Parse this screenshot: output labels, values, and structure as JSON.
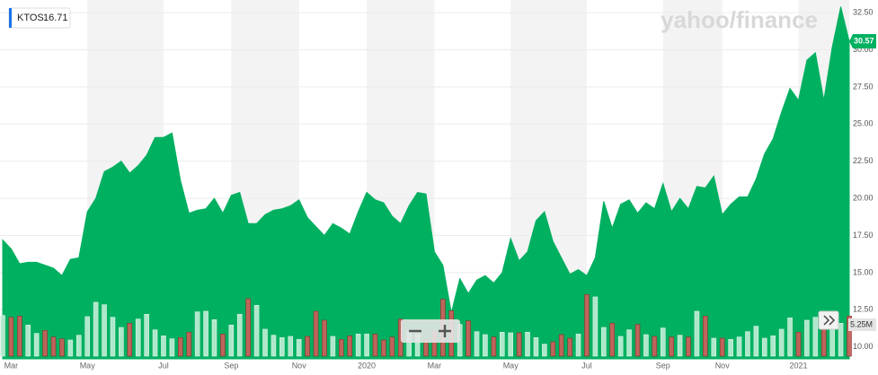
{
  "chart_data": {
    "type": "area",
    "ticker": "KTOS",
    "ticker_price": 16.71,
    "watermark": "yahoo/finance",
    "categories": [
      null,
      "Mar",
      null,
      null,
      null,
      null,
      null,
      null,
      null,
      null,
      "May",
      null,
      null,
      null,
      null,
      null,
      null,
      null,
      null,
      "Jul",
      null,
      null,
      null,
      null,
      null,
      null,
      null,
      "Sep",
      null,
      null,
      null,
      null,
      null,
      null,
      null,
      "Nov",
      null,
      null,
      null,
      null,
      null,
      null,
      null,
      "2020",
      null,
      null,
      null,
      null,
      null,
      null,
      null,
      "Mar",
      null,
      null,
      null,
      null,
      null,
      null,
      null,
      null,
      "May",
      null,
      null,
      null,
      null,
      null,
      null,
      null,
      null,
      "Jul",
      null,
      null,
      null,
      null,
      null,
      null,
      null,
      null,
      "Sep",
      null,
      null,
      null,
      null,
      null,
      null,
      "Nov",
      null,
      null,
      null,
      null,
      null,
      null,
      null,
      null,
      "2021",
      null,
      null,
      null,
      null,
      null,
      null
    ],
    "series": [
      {
        "name": "KTOS",
        "color": "#00b061",
        "values": [
          17.2,
          16.6,
          15.6,
          15.7,
          15.7,
          15.5,
          15.3,
          14.8,
          15.9,
          16.0,
          19.1,
          20.0,
          21.8,
          22.1,
          22.5,
          21.7,
          22.2,
          22.9,
          24.1,
          24.1,
          24.4,
          21.2,
          19.0,
          19.2,
          19.3,
          20.0,
          19.0,
          20.2,
          20.4,
          18.3,
          18.3,
          18.9,
          19.2,
          19.3,
          19.5,
          19.9,
          18.7,
          18.1,
          17.5,
          18.3,
          18.0,
          17.6,
          19.1,
          20.4,
          19.9,
          19.7,
          18.8,
          18.3,
          19.5,
          20.4,
          20.3,
          16.4,
          15.5,
          12.3,
          14.6,
          13.6,
          14.5,
          14.8,
          14.3,
          15.0,
          17.3,
          15.8,
          16.4,
          18.5,
          19.1,
          17.1,
          16.0,
          14.9,
          15.2,
          14.8,
          16.0,
          19.8,
          18.0,
          19.6,
          19.9,
          19.0,
          19.7,
          19.3,
          21.0,
          19.1,
          20.0,
          19.3,
          20.8,
          20.7,
          21.5,
          18.9,
          19.6,
          20.1,
          20.1,
          21.3,
          23.0,
          24.0,
          25.8,
          27.4,
          26.6,
          29.3,
          29.8,
          26.6,
          30.2,
          32.9,
          30.57
        ]
      }
    ],
    "volume": {
      "up_color": "#b8ead0",
      "down_color": "#c9605a",
      "ylim": [
        0,
        59.5
      ],
      "ticks": [
        {
          "value": 5.25,
          "label": "5.25M"
        }
      ],
      "values": [
        6.8,
        6.5,
        6.7,
        5.2,
        3.8,
        4.3,
        3.2,
        2.9,
        2.7,
        3.5,
        6.6,
        9.0,
        8.6,
        6.5,
        4.8,
        5.5,
        6.2,
        7.0,
        4.4,
        3.4,
        2.9,
        3.1,
        4.0,
        7.4,
        7.5,
        6.1,
        3.7,
        5.2,
        7.0,
        9.6,
        8.5,
        4.5,
        3.5,
        3.1,
        3.3,
        2.8,
        3.3,
        7.5,
        6.0,
        3.3,
        2.8,
        3.4,
        3.7,
        3.7,
        3.7,
        2.7,
        3.2,
        6.2,
        4.2,
        3.7,
        2.7,
        4.2,
        9.5,
        7.6,
        5.3,
        5.9,
        4.1,
        3.6,
        3.2,
        4.0,
        3.9,
        3.9,
        4.0,
        3.1,
        2.0,
        2.4,
        3.6,
        3.0,
        3.7,
        10.3,
        9.9,
        4.8,
        5.5,
        3.3,
        4.4,
        5.3,
        3.6,
        3.3,
        4.7,
        3.2,
        3.5,
        3.2,
        7.5,
        6.7,
        3.0,
        3.0,
        2.8,
        3.2,
        4.1,
        5.0,
        3.0,
        3.4,
        4.5,
        6.4,
        4.0,
        6.0,
        6.5,
        5.2,
        4.8,
        5.5,
        6.7
      ]
    },
    "ylim": [
      9.2,
      33.35
    ],
    "yticks": [
      {
        "value": 10,
        "label": "10.00"
      },
      {
        "value": 12.5,
        "label": "12.50"
      },
      {
        "value": 15,
        "label": "15.00"
      },
      {
        "value": 17.5,
        "label": "17.50"
      },
      {
        "value": 20,
        "label": "20.00"
      },
      {
        "value": 22.5,
        "label": "22.50"
      },
      {
        "value": 25,
        "label": "25.00"
      },
      {
        "value": 27.5,
        "label": "27.50"
      },
      {
        "value": 30,
        "label": "30.00"
      },
      {
        "value": 32.5,
        "label": "32.50"
      }
    ],
    "grid": true
  }
}
